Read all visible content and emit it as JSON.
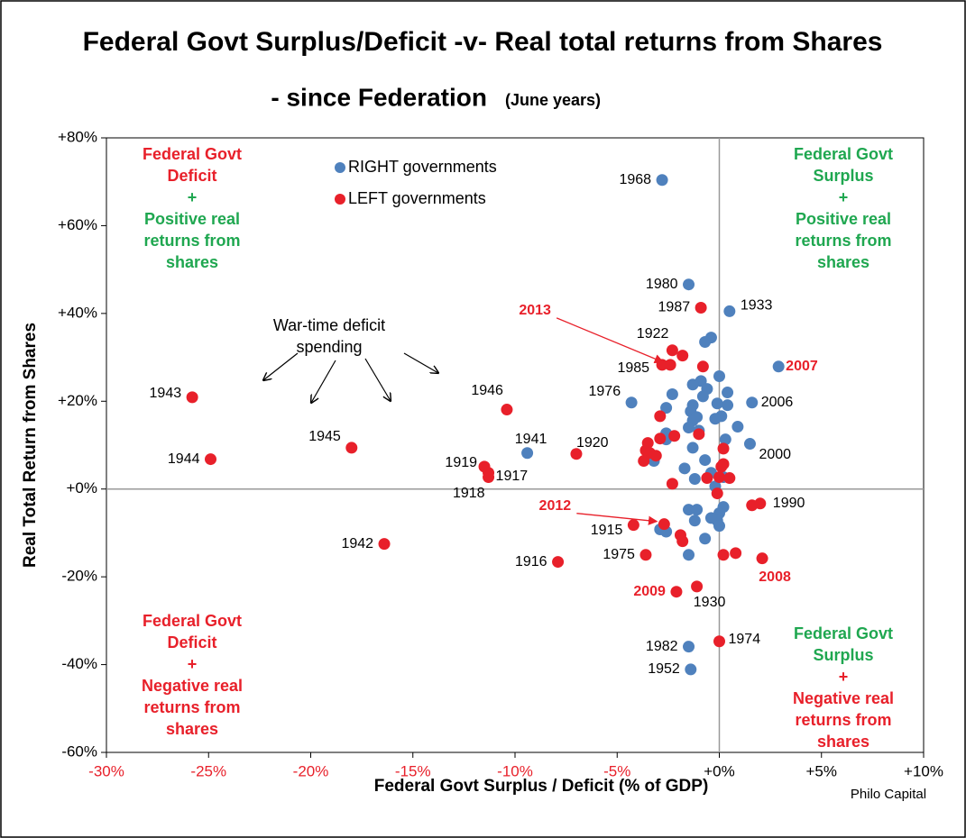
{
  "chart_data": {
    "type": "scatter",
    "title": "Federal Govt Surplus/Deficit -v- Real total returns from Shares",
    "subtitle": "- since Federation",
    "subtitle_note": "(June years)",
    "x_label": "Federal Govt Surplus / Deficit (% of GDP)",
    "y_label": "Real Total Return from Shares",
    "source": "Philo Capital",
    "xlim": [
      -30,
      10
    ],
    "ylim": [
      -60,
      80
    ],
    "xticks": [
      {
        "value": -30,
        "label": "-30%"
      },
      {
        "value": -25,
        "label": "-25%"
      },
      {
        "value": -20,
        "label": "-20%"
      },
      {
        "value": -15,
        "label": "-15%"
      },
      {
        "value": -10,
        "label": "-10%"
      },
      {
        "value": -5,
        "label": "-5%"
      },
      {
        "value": 0,
        "label": "+0%"
      },
      {
        "value": 5,
        "label": "+5%"
      },
      {
        "value": 10,
        "label": "+10%"
      }
    ],
    "yticks": [
      {
        "value": -60,
        "label": "-60%"
      },
      {
        "value": -40,
        "label": "-40%"
      },
      {
        "value": -20,
        "label": "-20%"
      },
      {
        "value": 0,
        "label": "+0%"
      },
      {
        "value": 20,
        "label": "+20%"
      },
      {
        "value": 40,
        "label": "+40%"
      },
      {
        "value": 60,
        "label": "+60%"
      },
      {
        "value": 80,
        "label": "+80%"
      }
    ],
    "negative_tick_color": "#e8202a",
    "series": [
      {
        "name": "RIGHT governments",
        "color": "#4f81bd",
        "x": [
          -2.8,
          -1.5,
          0.5,
          2.9,
          -4.3,
          1.6,
          -9.4,
          1.5,
          -1.5,
          -1.4,
          -0.4,
          -0.7,
          0,
          -0.9,
          -1.3,
          -0.6,
          -0.8,
          0.4,
          -2.3,
          0.4,
          -0.1,
          -1.3,
          -2.6,
          -1.4,
          0.1,
          -0.2,
          -1.3,
          -1.1,
          0.9,
          -1.5,
          -1.0,
          0.3,
          -2.6,
          -1.3,
          -2.6,
          -3.2,
          -1.7,
          -0.7,
          -1.2,
          -0.4,
          -0.2,
          0.2,
          0.2,
          0,
          -0.1,
          -0.4,
          -1.5,
          -1.1,
          -1.2,
          0,
          -2.6,
          -2.9,
          -0.7,
          -1.5
        ],
        "values": [
          70.4,
          46.6,
          40.5,
          27.9,
          19.7,
          19.7,
          8.2,
          10.3,
          -35.9,
          -41.1,
          34.5,
          33.5,
          25.7,
          24.6,
          23.8,
          22.8,
          21.1,
          22.0,
          21.6,
          19.1,
          19.5,
          19.1,
          18.5,
          17.7,
          16.6,
          16.0,
          15.6,
          16.4,
          14.2,
          14.0,
          13.3,
          11.3,
          12.7,
          9.4,
          11.3,
          6.4,
          4.7,
          6.6,
          2.3,
          3.7,
          0.6,
          2.7,
          -4.1,
          -5.5,
          -7.2,
          -6.6,
          -4.7,
          -4.7,
          -7.2,
          -8.4,
          -9.7,
          -9.2,
          -11.3,
          -15.0
        ],
        "labels": [
          "1968",
          "1980",
          "1933",
          "2007",
          "1976",
          "2006",
          "1941",
          "2000",
          "1982",
          "1952",
          null,
          null,
          null,
          null,
          null,
          null,
          null,
          null,
          null,
          null,
          null,
          null,
          null,
          null,
          null,
          null,
          null,
          null,
          null,
          null,
          null,
          null,
          null,
          null,
          null,
          null,
          null,
          null,
          null,
          null,
          null,
          null,
          null,
          null,
          null,
          null,
          null,
          null,
          null,
          null,
          null,
          null,
          null,
          null
        ],
        "highlight": [
          false,
          false,
          false,
          true,
          false,
          false,
          false,
          false,
          false,
          false,
          false,
          false,
          false,
          false,
          false,
          false,
          false,
          false,
          false,
          false,
          false,
          false,
          false,
          false,
          false,
          false,
          false,
          false,
          false,
          false,
          false,
          false,
          false,
          false,
          false,
          false,
          false,
          false,
          false,
          false,
          false,
          false,
          false,
          false,
          false,
          false,
          false,
          false,
          false,
          false,
          false,
          false,
          false,
          false
        ]
      },
      {
        "name": "LEFT governments",
        "color": "#e8202a",
        "x": [
          -25.8,
          -24.9,
          -18.0,
          -16.4,
          -10.4,
          -11.5,
          -11.3,
          -11.3,
          -7.9,
          -7.0,
          -0.9,
          -2.3,
          -2.8,
          -2.4,
          -4.2,
          -2.7,
          -3.6,
          -2.1,
          -1.1,
          0,
          2.0,
          1.6,
          2.1,
          -1.8,
          -0.8,
          -2.9,
          -2.9,
          -2.2,
          -1.0,
          -3.6,
          -3.5,
          -3.4,
          -3.1,
          -3.7,
          -2.3,
          -0.6,
          0,
          0.5,
          -0.1,
          0.2,
          0.2,
          0.1,
          -1.9,
          -1.8,
          0.2,
          0.8
        ],
        "values": [
          20.9,
          6.8,
          9.4,
          -12.5,
          18.1,
          5.1,
          3.7,
          2.7,
          -16.6,
          8.0,
          41.3,
          31.6,
          28.3,
          28.3,
          -8.2,
          -8.0,
          -15.0,
          -23.4,
          -22.2,
          -34.7,
          -3.3,
          -3.7,
          -15.8,
          30.4,
          27.9,
          16.6,
          11.5,
          12.1,
          12.5,
          8.8,
          10.5,
          8.2,
          7.6,
          6.4,
          1.2,
          2.5,
          2.7,
          2.5,
          -1.0,
          9.2,
          5.7,
          5.1,
          -10.5,
          -11.9,
          -15.0,
          -14.6
        ],
        "labels": [
          "1943",
          "1944",
          "1945",
          "1942",
          "1946",
          "1919",
          "1917",
          "1918",
          "1916",
          "1920",
          "1987",
          "1922",
          "1985",
          "2013",
          "1915",
          "2012",
          "1975",
          "2009",
          "1930",
          "1974",
          "1990",
          null,
          "2008",
          null,
          null,
          null,
          null,
          null,
          null,
          null,
          null,
          null,
          null,
          null,
          null,
          null,
          null,
          null,
          null,
          null,
          null,
          null,
          null,
          null,
          null,
          null
        ],
        "highlight": [
          false,
          false,
          false,
          false,
          false,
          false,
          false,
          false,
          false,
          false,
          false,
          false,
          false,
          true,
          false,
          true,
          false,
          true,
          false,
          false,
          false,
          false,
          true,
          false,
          false,
          false,
          false,
          false,
          false,
          false,
          false,
          false,
          false,
          false,
          false,
          false,
          false,
          false,
          false,
          false,
          false,
          false,
          false,
          false,
          false,
          false
        ]
      }
    ],
    "highlight_color": "#e8202a",
    "annotation": [
      "War-time deficit",
      "spending"
    ],
    "quadrants": [
      {
        "lines": [
          {
            "text": "Federal Govt",
            "color": "#e8202a"
          },
          {
            "text": "Deficit",
            "color": "#e8202a"
          },
          {
            "text": "+",
            "color": "#1fa750"
          },
          {
            "text": "Positive real",
            "color": "#1fa750"
          },
          {
            "text": "returns from",
            "color": "#1fa750"
          },
          {
            "text": "shares",
            "color": "#1fa750"
          }
        ]
      },
      {
        "lines": [
          {
            "text": "Federal Govt",
            "color": "#1fa750"
          },
          {
            "text": "Surplus",
            "color": "#1fa750"
          },
          {
            "text": "+",
            "color": "#1fa750"
          },
          {
            "text": "Positive real",
            "color": "#1fa750"
          },
          {
            "text": "returns from",
            "color": "#1fa750"
          },
          {
            "text": "shares",
            "color": "#1fa750"
          }
        ]
      },
      {
        "lines": [
          {
            "text": "Federal Govt",
            "color": "#e8202a"
          },
          {
            "text": "Deficit",
            "color": "#e8202a"
          },
          {
            "text": "+",
            "color": "#e8202a"
          },
          {
            "text": "Negative real",
            "color": "#e8202a"
          },
          {
            "text": "returns from",
            "color": "#e8202a"
          },
          {
            "text": "shares",
            "color": "#e8202a"
          }
        ]
      },
      {
        "lines": [
          {
            "text": "Federal Govt",
            "color": "#1fa750"
          },
          {
            "text": "Surplus",
            "color": "#1fa750"
          },
          {
            "text": "+",
            "color": "#e8202a"
          },
          {
            "text": "Negative real",
            "color": "#e8202a"
          },
          {
            "text": "returns from",
            "color": "#e8202a"
          },
          {
            "text": "shares",
            "color": "#e8202a"
          }
        ]
      }
    ]
  }
}
